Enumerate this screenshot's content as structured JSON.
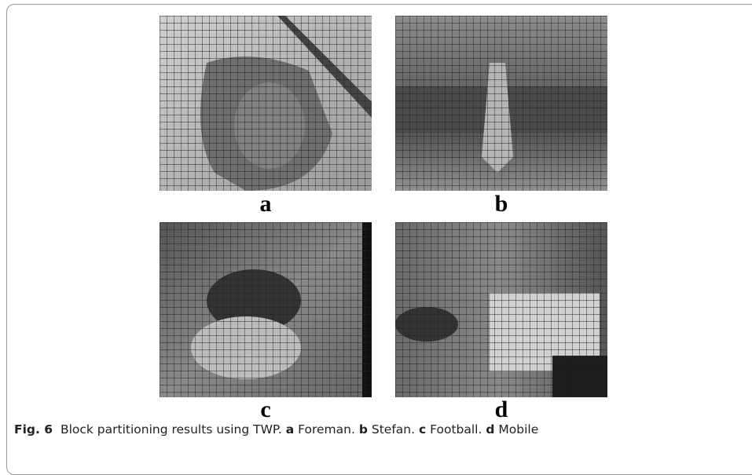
{
  "figure": {
    "panels": [
      {
        "label": "a"
      },
      {
        "label": "b"
      },
      {
        "label": "c"
      },
      {
        "label": "d"
      }
    ],
    "caption": {
      "number": "Fig. 6",
      "text": "Block partitioning results using TWP.",
      "parts": [
        {
          "label": "a",
          "text": "Foreman."
        },
        {
          "label": "b",
          "text": "Stefan."
        },
        {
          "label": "c",
          "text": "Football."
        },
        {
          "label": "d",
          "text": "Mobile"
        }
      ]
    }
  }
}
